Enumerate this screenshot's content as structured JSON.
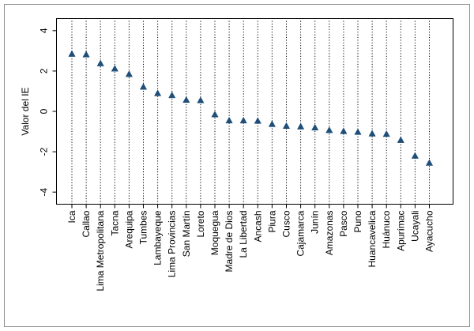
{
  "chart_data": {
    "type": "scatter",
    "ylabel": "Valor del IE",
    "ylim": [
      -4.6,
      4.6
    ],
    "yticks": [
      -4,
      -2,
      0,
      2,
      4
    ],
    "ytick_labels": [
      "-4",
      "-2",
      "0",
      "2",
      "4"
    ],
    "grid": false,
    "category_guides": "vertical dotted lines",
    "marker": "triangle",
    "marker_color": "#1f4e79",
    "categories": [
      "Ica",
      "Callao",
      "Lima Metropolitana",
      "Tacna",
      "Arequipa",
      "Tumbes",
      "Lambayeque",
      "Lima Provincias",
      "San Martín",
      "Loreto",
      "Moquegua",
      "Madre de Dios",
      "La Libertad",
      "Ancash",
      "Piura",
      "Cusco",
      "Cajamarca",
      "Junín",
      "Amazonas",
      "Pasco",
      "Puno",
      "Huancavelica",
      "Huánuco",
      "Apurímac",
      "Ucayali",
      "Ayacucho"
    ],
    "values": [
      2.85,
      2.82,
      2.38,
      2.12,
      1.85,
      1.22,
      0.9,
      0.8,
      0.57,
      0.55,
      -0.15,
      -0.45,
      -0.45,
      -0.47,
      -0.63,
      -0.72,
      -0.75,
      -0.8,
      -0.93,
      -0.98,
      -1.02,
      -1.1,
      -1.12,
      -1.42,
      -2.2,
      -2.55
    ]
  }
}
